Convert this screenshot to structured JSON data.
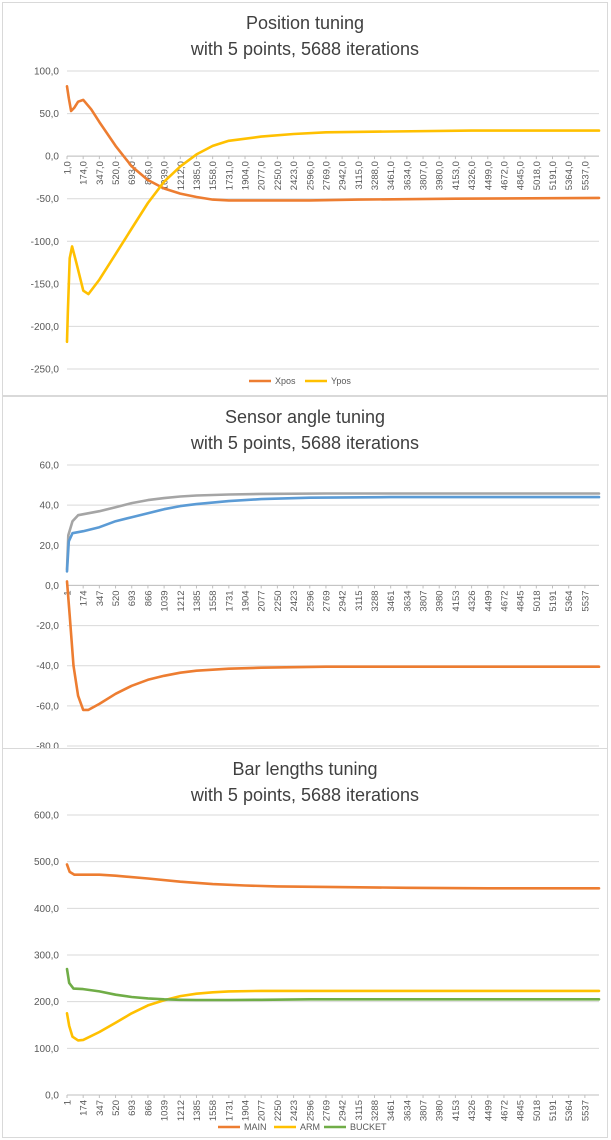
{
  "chart_data": [
    {
      "type": "line",
      "title_line1": "Position tuning",
      "title_line2": "with 5 points, 5688 iterations",
      "ylim": [
        -250,
        100
      ],
      "yticks": [
        "100,0",
        "50,0",
        "0,0",
        "-50,0",
        "-100,0",
        "-150,0",
        "-200,0",
        "-250,0"
      ],
      "ytick_values": [
        100,
        50,
        0,
        -50,
        -100,
        -150,
        -200,
        -250
      ],
      "xlim": [
        1,
        5688
      ],
      "xticks": [
        "1,0",
        "174,0",
        "347,0",
        "520,0",
        "693,0",
        "866,0",
        "1039,0",
        "1212,0",
        "1385,0",
        "1558,0",
        "1731,0",
        "1904,0",
        "2077,0",
        "2250,0",
        "2423,0",
        "2596,0",
        "2769,0",
        "2942,0",
        "3115,0",
        "3288,0",
        "3461,0",
        "3634,0",
        "3807,0",
        "3980,0",
        "4153,0",
        "4326,0",
        "4499,0",
        "4672,0",
        "4845,0",
        "5018,0",
        "5191,0",
        "5364,0",
        "5537,0"
      ],
      "xtick_values": [
        1,
        174,
        347,
        520,
        693,
        866,
        1039,
        1212,
        1385,
        1558,
        1731,
        1904,
        2077,
        2250,
        2423,
        2596,
        2769,
        2942,
        3115,
        3288,
        3461,
        3634,
        3807,
        3980,
        4153,
        4326,
        4499,
        4672,
        4845,
        5018,
        5191,
        5364,
        5537
      ],
      "xaxis_at_zero": true,
      "grid": true,
      "legend_position": "bottom",
      "series": [
        {
          "name": "Xpos",
          "color": "#ED7D31",
          "points": [
            [
              1,
              82
            ],
            [
              20,
              68
            ],
            [
              45,
              53
            ],
            [
              80,
              57
            ],
            [
              120,
              64
            ],
            [
              175,
              66
            ],
            [
              260,
              55
            ],
            [
              347,
              40
            ],
            [
              520,
              12
            ],
            [
              693,
              -12
            ],
            [
              866,
              -28
            ],
            [
              1039,
              -38
            ],
            [
              1212,
              -44
            ],
            [
              1385,
              -48
            ],
            [
              1558,
              -51
            ],
            [
              1731,
              -52
            ],
            [
              2077,
              -52
            ],
            [
              2596,
              -52
            ],
            [
              3115,
              -51
            ],
            [
              4153,
              -50
            ],
            [
              5688,
              -49
            ]
          ]
        },
        {
          "name": "Ypos",
          "color": "#FFC000",
          "points": [
            [
              1,
              -218
            ],
            [
              10,
              -185
            ],
            [
              30,
              -120
            ],
            [
              55,
              -106
            ],
            [
              100,
              -125
            ],
            [
              175,
              -158
            ],
            [
              230,
              -162
            ],
            [
              347,
              -145
            ],
            [
              520,
              -115
            ],
            [
              693,
              -85
            ],
            [
              866,
              -55
            ],
            [
              1039,
              -30
            ],
            [
              1212,
              -12
            ],
            [
              1385,
              2
            ],
            [
              1558,
              12
            ],
            [
              1731,
              18
            ],
            [
              2077,
              23
            ],
            [
              2423,
              26
            ],
            [
              2769,
              28
            ],
            [
              3461,
              29
            ],
            [
              4326,
              30
            ],
            [
              5688,
              30
            ]
          ]
        }
      ]
    },
    {
      "type": "line",
      "title_line1": "Sensor angle tuning",
      "title_line2": "with 5 points, 5688 iterations",
      "ylim": [
        -80,
        60
      ],
      "yticks": [
        "60,0",
        "40,0",
        "20,0",
        "0,0",
        "-20,0",
        "-40,0",
        "-60,0",
        "-80,0"
      ],
      "ytick_values": [
        60,
        40,
        20,
        0,
        -20,
        -40,
        -60,
        -80
      ],
      "xlim": [
        1,
        5688
      ],
      "xticks": [
        "1",
        "174",
        "347",
        "520",
        "693",
        "866",
        "1039",
        "1212",
        "1385",
        "1558",
        "1731",
        "1904",
        "2077",
        "2250",
        "2423",
        "2596",
        "2769",
        "2942",
        "3115",
        "3288",
        "3461",
        "3634",
        "3807",
        "3980",
        "4153",
        "4326",
        "4499",
        "4672",
        "4845",
        "5018",
        "5191",
        "5364",
        "5537"
      ],
      "xtick_values": [
        1,
        174,
        347,
        520,
        693,
        866,
        1039,
        1212,
        1385,
        1558,
        1731,
        1904,
        2077,
        2250,
        2423,
        2596,
        2769,
        2942,
        3115,
        3288,
        3461,
        3634,
        3807,
        3980,
        4153,
        4326,
        4499,
        4672,
        4845,
        5018,
        5191,
        5364,
        5537
      ],
      "xaxis_at_zero": true,
      "grid": true,
      "series": [
        {
          "color": "#A5A5A5",
          "points": [
            [
              1,
              8
            ],
            [
              15,
              25
            ],
            [
              60,
              32
            ],
            [
              120,
              35
            ],
            [
              347,
              37
            ],
            [
              520,
              39
            ],
            [
              693,
              41
            ],
            [
              866,
              42.5
            ],
            [
              1039,
              43.5
            ],
            [
              1212,
              44.3
            ],
            [
              1385,
              44.8
            ],
            [
              1731,
              45.3
            ],
            [
              2077,
              45.6
            ],
            [
              2769,
              45.8
            ],
            [
              5688,
              45.8
            ]
          ]
        },
        {
          "color": "#5B9BD5",
          "points": [
            [
              1,
              7
            ],
            [
              20,
              22
            ],
            [
              60,
              26
            ],
            [
              174,
              27
            ],
            [
              347,
              29
            ],
            [
              520,
              32
            ],
            [
              693,
              34
            ],
            [
              866,
              36
            ],
            [
              1039,
              38
            ],
            [
              1212,
              39.5
            ],
            [
              1385,
              40.5
            ],
            [
              1731,
              42
            ],
            [
              2077,
              43
            ],
            [
              2596,
              43.7
            ],
            [
              3461,
              44
            ],
            [
              5688,
              44
            ]
          ]
        },
        {
          "color": "#ED7D31",
          "points": [
            [
              1,
              2
            ],
            [
              30,
              -15
            ],
            [
              70,
              -40
            ],
            [
              120,
              -55
            ],
            [
              174,
              -62
            ],
            [
              230,
              -62
            ],
            [
              347,
              -59
            ],
            [
              520,
              -54
            ],
            [
              693,
              -50
            ],
            [
              866,
              -47
            ],
            [
              1039,
              -45
            ],
            [
              1212,
              -43.5
            ],
            [
              1385,
              -42.5
            ],
            [
              1731,
              -41.5
            ],
            [
              2077,
              -41
            ],
            [
              2769,
              -40.5
            ],
            [
              5688,
              -40.5
            ]
          ]
        }
      ]
    },
    {
      "type": "line",
      "title_line1": "Bar lengths tuning",
      "title_line2": "with 5 points, 5688 iterations",
      "ylim": [
        0,
        600
      ],
      "yticks": [
        "600,0",
        "500,0",
        "400,0",
        "300,0",
        "200,0",
        "100,0",
        "0,0"
      ],
      "ytick_values": [
        600,
        500,
        400,
        300,
        200,
        100,
        0
      ],
      "xlim": [
        1,
        5688
      ],
      "xticks": [
        "1",
        "174",
        "347",
        "520",
        "693",
        "866",
        "1039",
        "1212",
        "1385",
        "1558",
        "1731",
        "1904",
        "2077",
        "2250",
        "2423",
        "2596",
        "2769",
        "2942",
        "3115",
        "3288",
        "3461",
        "3634",
        "3807",
        "3980",
        "4153",
        "4326",
        "4499",
        "4672",
        "4845",
        "5018",
        "5191",
        "5364",
        "5537"
      ],
      "xtick_values": [
        1,
        174,
        347,
        520,
        693,
        866,
        1039,
        1212,
        1385,
        1558,
        1731,
        1904,
        2077,
        2250,
        2423,
        2596,
        2769,
        2942,
        3115,
        3288,
        3461,
        3634,
        3807,
        3980,
        4153,
        4326,
        4499,
        4672,
        4845,
        5018,
        5191,
        5364,
        5537
      ],
      "xaxis_at_zero": false,
      "grid": true,
      "legend_position": "bottom",
      "series": [
        {
          "name": "MAIN",
          "color": "#ED7D31",
          "points": [
            [
              1,
              494
            ],
            [
              30,
              478
            ],
            [
              80,
              472
            ],
            [
              174,
              472
            ],
            [
              347,
              472
            ],
            [
              520,
              470
            ],
            [
              866,
              464
            ],
            [
              1212,
              457
            ],
            [
              1558,
              452
            ],
            [
              1904,
              449
            ],
            [
              2250,
              447
            ],
            [
              2769,
              446
            ],
            [
              3634,
              444
            ],
            [
              4499,
              443
            ],
            [
              5688,
              443
            ]
          ]
        },
        {
          "name": "ARM",
          "color": "#FFC000",
          "points": [
            [
              1,
              175
            ],
            [
              25,
              148
            ],
            [
              60,
              125
            ],
            [
              120,
              117
            ],
            [
              174,
              118
            ],
            [
              347,
              135
            ],
            [
              520,
              155
            ],
            [
              693,
              175
            ],
            [
              866,
              192
            ],
            [
              1039,
              203
            ],
            [
              1212,
              212
            ],
            [
              1385,
              217
            ],
            [
              1558,
              220
            ],
            [
              1731,
              222
            ],
            [
              2077,
              223
            ],
            [
              5688,
              223
            ]
          ]
        },
        {
          "name": "BUCKET",
          "color": "#70AD47",
          "points": [
            [
              1,
              270
            ],
            [
              25,
              240
            ],
            [
              70,
              228
            ],
            [
              174,
              227
            ],
            [
              347,
              222
            ],
            [
              520,
              215
            ],
            [
              693,
              210
            ],
            [
              866,
              207
            ],
            [
              1039,
              205
            ],
            [
              1212,
              204
            ],
            [
              1385,
              203.5
            ],
            [
              1731,
              203.5
            ],
            [
              2077,
              204
            ],
            [
              2596,
              205
            ],
            [
              5688,
              205
            ]
          ]
        }
      ]
    }
  ]
}
